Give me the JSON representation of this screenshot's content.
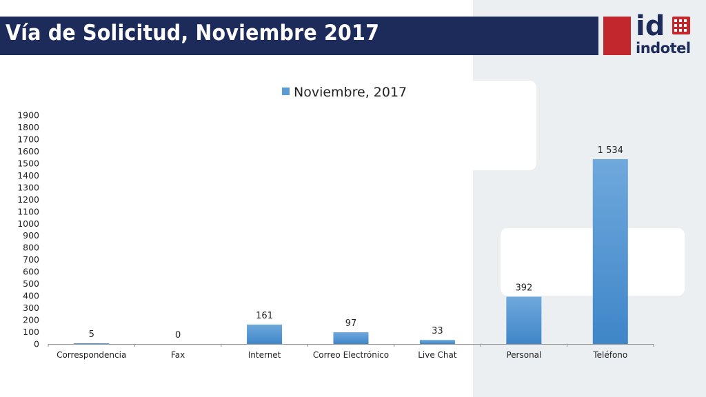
{
  "slide": {
    "title": "Vía de Solicitud, Noviembre 2017"
  },
  "logo": {
    "mark": "id",
    "name": "indotel"
  },
  "colors": {
    "title_bar": "#1c2b5a",
    "logo_red": "#c1272d",
    "bar": "#5b9bd5"
  },
  "chart_data": {
    "type": "bar",
    "categories": [
      "Correspondencia",
      "Fax",
      "Internet",
      "Correo Electrónico",
      "Live Chat",
      "Personal",
      "Teléfono"
    ],
    "series": [
      {
        "name": "Noviembre, 2017",
        "values": [
          5,
          0,
          161,
          97,
          33,
          392,
          1534
        ],
        "labels": [
          "5",
          "0",
          "161",
          "97",
          "33",
          "392",
          "1 534"
        ]
      }
    ],
    "ylim": [
      0,
      1900
    ],
    "y_ticks": [
      0,
      100,
      200,
      300,
      400,
      500,
      600,
      700,
      800,
      900,
      1000,
      1100,
      1200,
      1300,
      1400,
      1500,
      1600,
      1700,
      1800,
      1900
    ],
    "legend_position": "top",
    "grid": false
  }
}
